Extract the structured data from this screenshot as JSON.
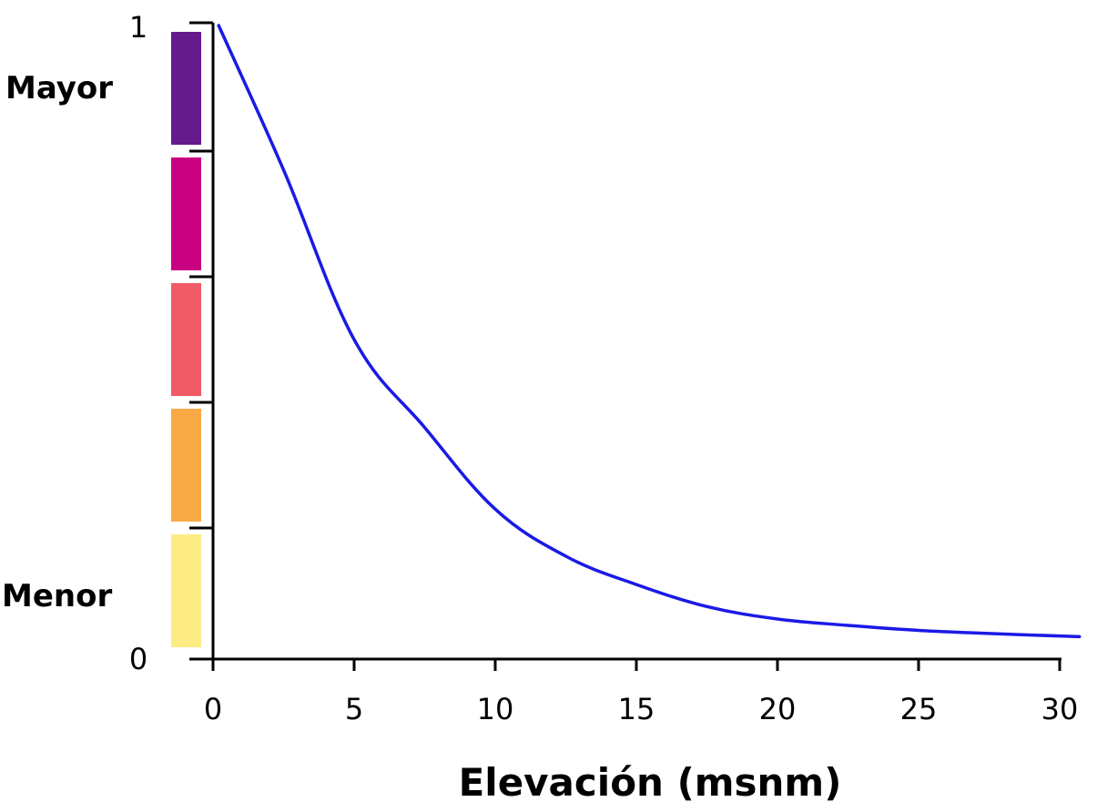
{
  "chart_data": {
    "type": "line",
    "title": "",
    "xlabel": "Elevación (msnm)",
    "ylabel": "",
    "xlim": [
      0,
      31
    ],
    "ylim": [
      0,
      1
    ],
    "x_ticks": [
      0,
      5,
      10,
      15,
      20,
      25,
      30
    ],
    "y_ticks": [
      {
        "value": 0,
        "label": "0"
      },
      {
        "value": 1,
        "label": "1"
      }
    ],
    "level_labels": {
      "high": "Mayor",
      "low": "Menor"
    },
    "color_scale": [
      "#fdeb84",
      "#f9aa45",
      "#f15b67",
      "#c90281",
      "#661b8c"
    ],
    "grid": false,
    "series": [
      {
        "color": "#1a1ae6",
        "x": [
          0.2,
          2.5,
          5,
          7.5,
          10,
          12.5,
          15,
          17.5,
          20,
          22.5,
          25,
          27.5,
          30.7
        ],
        "y": [
          1.0,
          0.77,
          0.5,
          0.36,
          0.23,
          0.155,
          0.11,
          0.075,
          0.055,
          0.045,
          0.037,
          0.032,
          0.027
        ]
      }
    ]
  }
}
